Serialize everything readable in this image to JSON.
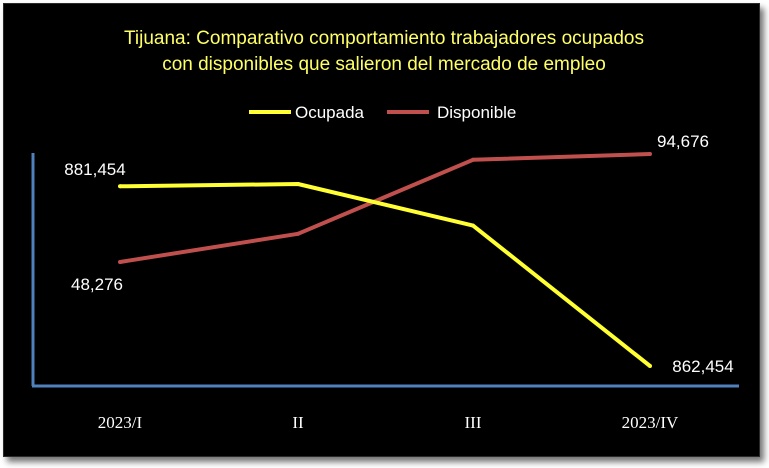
{
  "chart_data": {
    "type": "line",
    "title_lines": [
      "Tijuana: Comparativo comportamiento trabajadores ocupados",
      "con disponibles que salieron del mercado de empleo"
    ],
    "categories": [
      "2023/I",
      "II",
      "III",
      "2023/IV"
    ],
    "series": [
      {
        "name": "Ocupada",
        "color": "#ffff33",
        "values": [
          881454,
          881700,
          877300,
          862454
        ],
        "labels": [
          {
            "index": 0,
            "text": "881,454"
          },
          {
            "index": 3,
            "text": "862,454"
          }
        ]
      },
      {
        "name": "Disponible",
        "color": "#c0504d",
        "values": [
          48276,
          60400,
          92200,
          94676
        ],
        "labels": [
          {
            "index": 0,
            "text": "48,276"
          },
          {
            "index": 3,
            "text": "94,676"
          }
        ]
      }
    ],
    "legend_position": "top-center",
    "grid": false,
    "axis_color": "#4f81bd",
    "y_axis_labels": false
  }
}
